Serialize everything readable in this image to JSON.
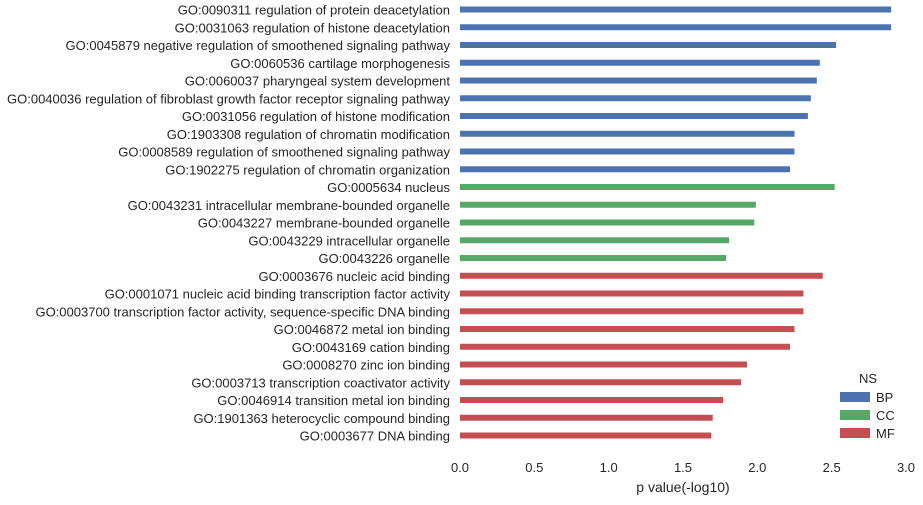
{
  "chart_data": {
    "type": "bar",
    "orientation": "horizontal",
    "xlabel": "p value(-log10)",
    "ylabel": "",
    "title": "",
    "xlim": [
      0,
      3.0
    ],
    "xticks": [
      "0.0",
      "0.5",
      "1.0",
      "1.5",
      "2.0",
      "2.5",
      "3.0"
    ],
    "grid": false,
    "legend": {
      "title": "NS",
      "placement": "bottom-right",
      "entries": [
        "BP",
        "CC",
        "MF"
      ]
    },
    "colors": {
      "BP": "#4c72b0",
      "CC": "#55a868",
      "MF": "#c44e52"
    },
    "bars": [
      {
        "label": "GO:0090311 regulation of protein deacetylation",
        "ns": "BP",
        "value": 2.9
      },
      {
        "label": "GO:0031063 regulation of histone deacetylation",
        "ns": "BP",
        "value": 2.9
      },
      {
        "label": "GO:0045879 negative regulation of smoothened signaling pathway",
        "ns": "BP",
        "value": 2.53
      },
      {
        "label": "GO:0060536 cartilage morphogenesis",
        "ns": "BP",
        "value": 2.42
      },
      {
        "label": "GO:0060037 pharyngeal system development",
        "ns": "BP",
        "value": 2.4
      },
      {
        "label": "GO:0040036 regulation of fibroblast growth factor receptor signaling pathway",
        "ns": "BP",
        "value": 2.36
      },
      {
        "label": "GO:0031056 regulation of histone modification",
        "ns": "BP",
        "value": 2.34
      },
      {
        "label": "GO:1903308 regulation of chromatin modification",
        "ns": "BP",
        "value": 2.25
      },
      {
        "label": "GO:0008589 regulation of smoothened signaling pathway",
        "ns": "BP",
        "value": 2.25
      },
      {
        "label": "GO:1902275 regulation of chromatin organization",
        "ns": "BP",
        "value": 2.22
      },
      {
        "label": "GO:0005634 nucleus",
        "ns": "CC",
        "value": 2.52
      },
      {
        "label": "GO:0043231 intracellular membrane-bounded organelle",
        "ns": "CC",
        "value": 1.99
      },
      {
        "label": "GO:0043227 membrane-bounded organelle",
        "ns": "CC",
        "value": 1.98
      },
      {
        "label": "GO:0043229 intracellular organelle",
        "ns": "CC",
        "value": 1.81
      },
      {
        "label": "GO:0043226 organelle",
        "ns": "CC",
        "value": 1.79
      },
      {
        "label": "GO:0003676 nucleic acid binding",
        "ns": "MF",
        "value": 2.44
      },
      {
        "label": "GO:0001071 nucleic acid binding transcription factor activity",
        "ns": "MF",
        "value": 2.31
      },
      {
        "label": "GO:0003700 transcription factor activity, sequence-specific DNA binding",
        "ns": "MF",
        "value": 2.31
      },
      {
        "label": "GO:0046872 metal ion binding",
        "ns": "MF",
        "value": 2.25
      },
      {
        "label": "GO:0043169 cation binding",
        "ns": "MF",
        "value": 2.22
      },
      {
        "label": "GO:0008270 zinc ion binding",
        "ns": "MF",
        "value": 1.93
      },
      {
        "label": "GO:0003713 transcription coactivator activity",
        "ns": "MF",
        "value": 1.89
      },
      {
        "label": "GO:0046914 transition metal ion binding",
        "ns": "MF",
        "value": 1.77
      },
      {
        "label": "GO:1901363 heterocyclic compound binding",
        "ns": "MF",
        "value": 1.7
      },
      {
        "label": "GO:0003677 DNA binding",
        "ns": "MF",
        "value": 1.69
      }
    ]
  }
}
